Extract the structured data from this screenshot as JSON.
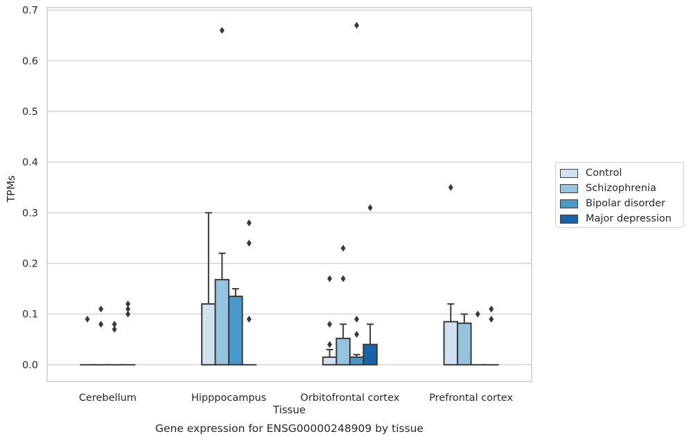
{
  "chart_data": {
    "type": "bar",
    "caption": "Gene expression for ENSG00000248909 by tissue",
    "xlabel": "Tissue",
    "ylabel": "TPMs",
    "ylim": [
      -0.033,
      0.705
    ],
    "yticks": [
      "0.0",
      "0.1",
      "0.2",
      "0.3",
      "0.4",
      "0.5",
      "0.6",
      "0.7"
    ],
    "grid": true,
    "legend_position": "right",
    "categories": [
      "Cerebellum",
      "Hipppocampus",
      "Orbitofrontal cortex",
      "Prefrontal cortex"
    ],
    "series": [
      {
        "name": "Control",
        "color": "#d0e1f2",
        "values": [
          0.0,
          0.12,
          0.015,
          0.085
        ],
        "whisker": [
          null,
          0.3,
          0.03,
          0.12
        ],
        "outliers": [
          [
            0.09
          ],
          [],
          [
            0.17,
            0.08,
            0.04
          ],
          [
            0.35
          ]
        ]
      },
      {
        "name": "Schizophrenia",
        "color": "#94c4df",
        "values": [
          0.0,
          0.168,
          0.052,
          0.082
        ],
        "whisker": [
          null,
          0.22,
          0.08,
          0.1
        ],
        "outliers": [
          [
            0.11,
            0.08
          ],
          [
            0.66
          ],
          [
            0.23,
            0.17
          ],
          []
        ]
      },
      {
        "name": "Bipolar disorder",
        "color": "#4a98c9",
        "values": [
          0.0,
          0.135,
          0.015,
          0.0
        ],
        "whisker": [
          null,
          0.15,
          0.02,
          null
        ],
        "outliers": [
          [
            0.08,
            0.07
          ],
          [],
          [
            0.67,
            0.09,
            0.06
          ],
          [
            0.1
          ]
        ]
      },
      {
        "name": "Major depression",
        "color": "#1764ab",
        "values": [
          0.0,
          0.0,
          0.04,
          0.0
        ],
        "whisker": [
          null,
          null,
          0.08,
          null
        ],
        "outliers": [
          [
            0.12,
            0.11,
            0.1
          ],
          [
            0.28,
            0.24,
            0.09
          ],
          [
            0.31
          ],
          [
            0.11,
            0.09
          ]
        ]
      }
    ]
  }
}
